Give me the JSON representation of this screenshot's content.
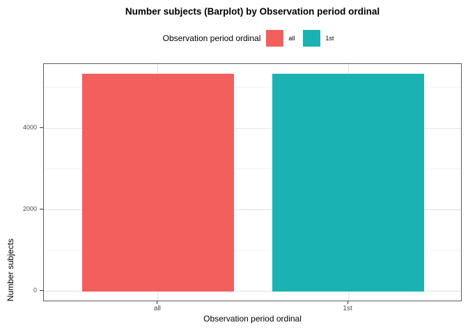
{
  "chart_data": {
    "type": "bar",
    "title": "Number subjects (Barplot) by Observation period ordinal",
    "xlabel": "Observation period ordinal",
    "ylabel": "Number subjects",
    "categories": [
      "all",
      "1st"
    ],
    "values": [
      5340,
      5340
    ],
    "bar_colors": [
      "#F25F5C",
      "#1BB2B4"
    ],
    "bar_width_frac": 0.8,
    "legend": {
      "position": "top",
      "title": "Observation period ordinal",
      "entries": [
        "all",
        "1st"
      ]
    },
    "yticks": [
      0,
      2000,
      4000
    ],
    "ytick_labels": [
      "0",
      "2000",
      "4000"
    ],
    "yticks_minor": [
      1000,
      3000,
      5000
    ],
    "ylim": [
      -264,
      5571
    ],
    "grid": true,
    "style": {
      "panel_border": "#595959",
      "grid_major": "#E2E2E2",
      "grid_minor": "#F2F2F2",
      "tick_color": "#333333",
      "tick_label_color": "#4d4d4d",
      "background": "#ffffff"
    }
  }
}
